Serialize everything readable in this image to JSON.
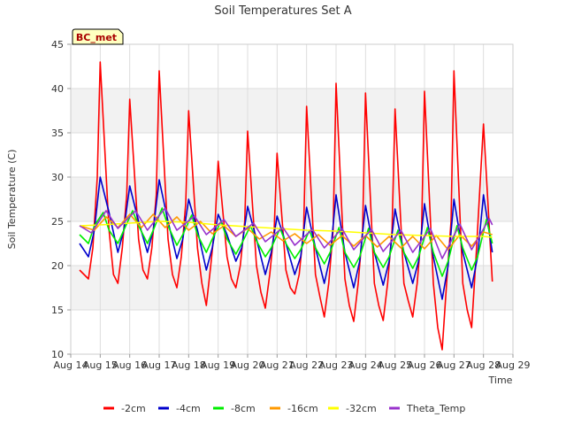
{
  "chart_data": {
    "type": "line",
    "title": "Soil Temperatures Set A",
    "xlabel": "Time",
    "ylabel": "Soil Temperature (C)",
    "site_label": "BC_met",
    "ylim": [
      10,
      45
    ],
    "yticks": [
      10,
      15,
      20,
      25,
      30,
      35,
      40,
      45
    ],
    "xlim": [
      14,
      29
    ],
    "xticks": [
      {
        "x": 14,
        "label": "Aug 14"
      },
      {
        "x": 15,
        "label": "Aug 15"
      },
      {
        "x": 16,
        "label": "Aug 16"
      },
      {
        "x": 17,
        "label": "Aug 17"
      },
      {
        "x": 18,
        "label": "Aug 18"
      },
      {
        "x": 19,
        "label": "Aug 19"
      },
      {
        "x": 20,
        "label": "Aug 20"
      },
      {
        "x": 21,
        "label": "Aug 21"
      },
      {
        "x": 22,
        "label": "Aug 22"
      },
      {
        "x": 23,
        "label": "Aug 23"
      },
      {
        "x": 24,
        "label": "Aug 24"
      },
      {
        "x": 25,
        "label": "Aug 25"
      },
      {
        "x": 26,
        "label": "Aug 26"
      },
      {
        "x": 27,
        "label": "Aug 27"
      },
      {
        "x": 28,
        "label": "Aug 28"
      },
      {
        "x": 29,
        "label": "Aug 29"
      }
    ],
    "grid": true,
    "legend_position": "bottom",
    "series": [
      {
        "name": "-2cm",
        "color": "#ff0000",
        "x": [
          14.3,
          14.45,
          14.6,
          14.75,
          14.9,
          15.0,
          15.3,
          15.45,
          15.6,
          15.75,
          15.9,
          16.0,
          16.3,
          16.45,
          16.6,
          16.75,
          16.9,
          17.0,
          17.3,
          17.45,
          17.6,
          17.75,
          17.9,
          18.0,
          18.3,
          18.45,
          18.6,
          18.75,
          18.9,
          19.0,
          19.3,
          19.45,
          19.6,
          19.75,
          19.9,
          20.0,
          20.3,
          20.45,
          20.6,
          20.75,
          20.9,
          21.0,
          21.3,
          21.45,
          21.6,
          21.75,
          21.9,
          22.0,
          22.3,
          22.45,
          22.6,
          22.75,
          22.9,
          23.0,
          23.3,
          23.45,
          23.6,
          23.75,
          23.9,
          24.0,
          24.3,
          24.45,
          24.6,
          24.75,
          24.9,
          25.0,
          25.3,
          25.45,
          25.6,
          25.75,
          25.9,
          26.0,
          26.3,
          26.45,
          26.6,
          26.75,
          26.9,
          27.0,
          27.3,
          27.45,
          27.6,
          27.75,
          27.9,
          28.0,
          28.3
        ],
        "y": [
          19.5,
          19.0,
          18.5,
          22,
          30,
          43,
          24,
          19,
          18,
          22,
          28,
          38.8,
          23,
          19.5,
          18.5,
          22,
          28,
          42,
          23,
          19,
          17.5,
          21,
          27,
          37.5,
          22,
          18,
          15.5,
          20,
          25,
          31.8,
          21,
          18.5,
          17.5,
          20,
          25,
          35.2,
          20,
          17,
          15.2,
          19,
          24,
          32.7,
          19.5,
          17.5,
          16.8,
          19,
          24,
          38,
          19,
          16.5,
          14.2,
          18,
          24,
          40.6,
          18.5,
          15.5,
          13.7,
          18,
          24,
          39.5,
          18,
          15.5,
          13.8,
          18,
          24,
          37.7,
          18,
          16,
          14.2,
          18,
          24,
          39.7,
          18,
          13,
          10.5,
          18,
          25,
          42,
          18,
          15,
          13,
          21,
          30,
          36,
          18.2
        ]
      },
      {
        "name": "-4cm",
        "color": "#0000cc",
        "x": [
          14.3,
          14.6,
          14.8,
          15.0,
          15.3,
          15.6,
          15.8,
          16.0,
          16.3,
          16.6,
          16.8,
          17.0,
          17.3,
          17.6,
          17.8,
          18.0,
          18.3,
          18.6,
          18.8,
          19.0,
          19.3,
          19.6,
          19.8,
          20.0,
          20.3,
          20.6,
          20.8,
          21.0,
          21.3,
          21.6,
          21.8,
          22.0,
          22.3,
          22.6,
          22.8,
          23.0,
          23.3,
          23.6,
          23.8,
          24.0,
          24.3,
          24.6,
          24.8,
          25.0,
          25.3,
          25.6,
          25.8,
          26.0,
          26.3,
          26.6,
          26.8,
          27.0,
          27.3,
          27.6,
          27.8,
          28.0,
          28.3
        ],
        "y": [
          22.5,
          21.0,
          24,
          30,
          26,
          21.5,
          24,
          29,
          25,
          21.5,
          24,
          29.7,
          25,
          20.8,
          23,
          27.5,
          24,
          19.5,
          22,
          25.8,
          23.5,
          20.5,
          22,
          26.7,
          23,
          19.0,
          21.5,
          25.6,
          22.5,
          19.0,
          21,
          26.6,
          22,
          18.0,
          21,
          28,
          21.5,
          17.5,
          20.5,
          26.8,
          21.5,
          17.8,
          20.5,
          26.4,
          21.5,
          18.0,
          20.5,
          27,
          21,
          16.2,
          20,
          27.5,
          21.5,
          17.5,
          21,
          28,
          21.5
        ]
      },
      {
        "name": "-8cm",
        "color": "#00ee00",
        "x": [
          14.3,
          14.6,
          14.8,
          15.1,
          15.3,
          15.6,
          15.8,
          16.1,
          16.3,
          16.6,
          16.8,
          17.1,
          17.3,
          17.6,
          17.8,
          18.1,
          18.3,
          18.6,
          18.8,
          19.1,
          19.3,
          19.6,
          19.8,
          20.1,
          20.3,
          20.6,
          20.8,
          21.1,
          21.3,
          21.6,
          21.8,
          22.1,
          22.3,
          22.6,
          22.8,
          23.1,
          23.3,
          23.6,
          23.8,
          24.1,
          24.3,
          24.6,
          24.8,
          25.1,
          25.3,
          25.6,
          25.8,
          26.1,
          26.3,
          26.6,
          26.8,
          27.1,
          27.3,
          27.6,
          27.8,
          28.1,
          28.3
        ],
        "y": [
          23.5,
          22.5,
          24.5,
          26,
          24,
          22.5,
          24,
          26.2,
          24.5,
          22.5,
          24,
          26.5,
          24.5,
          22.3,
          23.5,
          25.7,
          23.5,
          21.5,
          23,
          25,
          23,
          21.3,
          22.5,
          24.5,
          22.8,
          21,
          22,
          24.2,
          22.5,
          20.8,
          21.8,
          24,
          22,
          20.2,
          21.5,
          24.3,
          21.5,
          19.8,
          21,
          24.2,
          21.5,
          19.8,
          21,
          24,
          21.5,
          19.7,
          21,
          24.3,
          21.5,
          18.8,
          20.5,
          24.5,
          22,
          19.5,
          21,
          25.2,
          22.5
        ]
      },
      {
        "name": "-16cm",
        "color": "#ff9900",
        "x": [
          14.3,
          14.8,
          15.2,
          15.6,
          16.0,
          16.4,
          16.8,
          17.2,
          17.6,
          18.0,
          18.4,
          18.8,
          19.2,
          19.6,
          20.0,
          20.4,
          20.8,
          21.2,
          21.6,
          22.0,
          22.4,
          22.8,
          23.2,
          23.6,
          24.0,
          24.4,
          24.8,
          25.2,
          25.6,
          26.0,
          26.4,
          26.8,
          27.2,
          27.6,
          28.0,
          28.3
        ],
        "y": [
          24.5,
          24.0,
          25.5,
          24.3,
          25.8,
          24.3,
          25.8,
          24.3,
          25.5,
          24.0,
          25.0,
          23.6,
          24.5,
          23.3,
          24.2,
          23.0,
          23.8,
          22.8,
          23.6,
          22.5,
          23.5,
          22.3,
          23.4,
          22.2,
          23.4,
          22.1,
          23.3,
          22.0,
          23.3,
          21.9,
          23.4,
          21.8,
          23.5,
          22.2,
          23.8,
          23.5
        ]
      },
      {
        "name": "-32cm",
        "color": "#ffff00",
        "x": [
          14.3,
          15.0,
          16.0,
          17.0,
          18.0,
          19.0,
          20.0,
          21.0,
          22.0,
          23.0,
          24.0,
          25.0,
          26.0,
          27.0,
          28.0,
          28.3
        ],
        "y": [
          24.5,
          24.6,
          24.8,
          25.0,
          24.9,
          24.6,
          24.4,
          24.2,
          24.0,
          23.9,
          23.7,
          23.5,
          23.4,
          23.3,
          23.3,
          23.2
        ]
      },
      {
        "name": "Theta_Temp",
        "color": "#9933cc",
        "x": [
          14.3,
          14.7,
          15.2,
          15.6,
          16.2,
          16.6,
          17.2,
          17.6,
          18.2,
          18.6,
          19.2,
          19.6,
          20.2,
          20.6,
          21.2,
          21.6,
          22.2,
          22.6,
          23.2,
          23.6,
          24.2,
          24.6,
          25.2,
          25.6,
          26.2,
          26.6,
          27.2,
          27.6,
          28.2,
          28.3
        ],
        "y": [
          24.5,
          23.7,
          26.2,
          24.2,
          26.2,
          24.0,
          26.5,
          24.0,
          25.6,
          23.5,
          25.2,
          23.3,
          24.8,
          22.7,
          24.3,
          22.3,
          24.1,
          22.0,
          24.2,
          21.8,
          24.1,
          21.6,
          24.0,
          21.5,
          24.2,
          20.8,
          24.7,
          21.8,
          25.3,
          24.6
        ]
      }
    ]
  }
}
